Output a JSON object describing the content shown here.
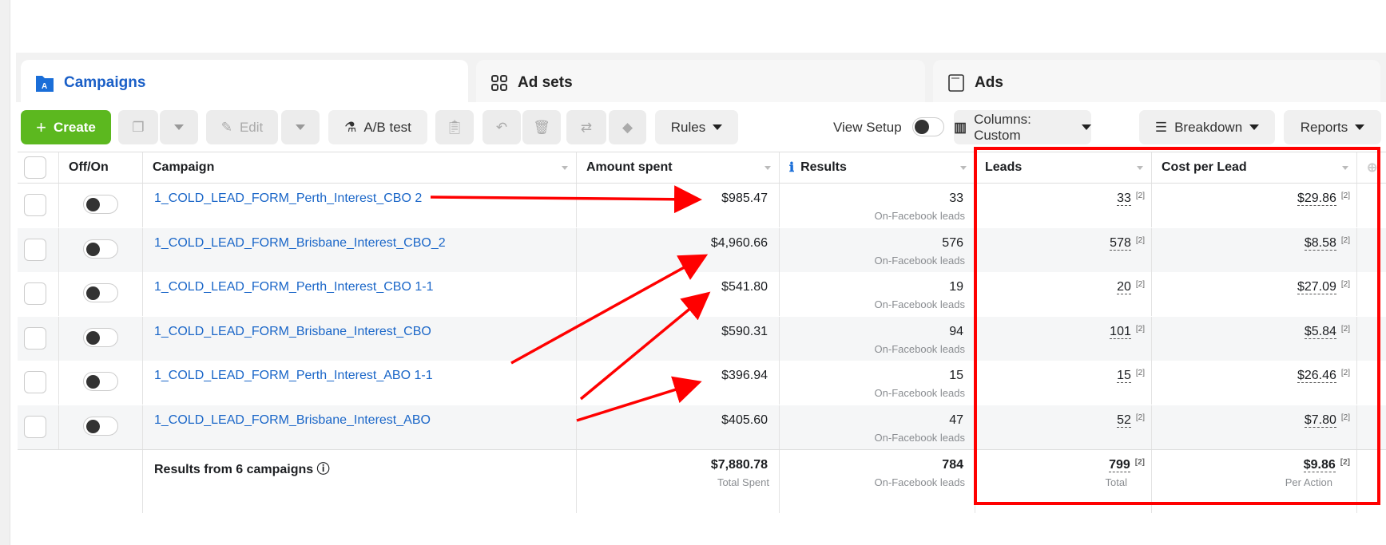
{
  "tabs": [
    {
      "label": "Campaigns",
      "icon": "campaign-folder-icon"
    },
    {
      "label": "Ad sets",
      "icon": "grid-icon"
    },
    {
      "label": "Ads",
      "icon": "ad-window-icon"
    }
  ],
  "toolbar": {
    "create": "Create",
    "edit": "Edit",
    "ab_test": "A/B test",
    "rules": "Rules",
    "view_setup": "View Setup",
    "columns": "Columns: Custom",
    "breakdown": "Breakdown",
    "reports": "Reports"
  },
  "columns": [
    "Off/On",
    "Campaign",
    "Amount spent",
    "Results",
    "Leads",
    "Cost per Lead"
  ],
  "rows": [
    {
      "campaign": "1_COLD_LEAD_FORM_Perth_Interest_CBO 2",
      "amount": "$985.47",
      "results": "33",
      "results_sub": "On-Facebook leads",
      "leads": "33",
      "cpl": "$29.86",
      "fn": "[2]"
    },
    {
      "campaign": "1_COLD_LEAD_FORM_Brisbane_Interest_CBO_2",
      "amount": "$4,960.66",
      "results": "576",
      "results_sub": "On-Facebook leads",
      "leads": "578",
      "cpl": "$8.58",
      "fn": "[2]"
    },
    {
      "campaign": "1_COLD_LEAD_FORM_Perth_Interest_CBO 1-1",
      "amount": "$541.80",
      "results": "19",
      "results_sub": "On-Facebook leads",
      "leads": "20",
      "cpl": "$27.09",
      "fn": "[2]"
    },
    {
      "campaign": "1_COLD_LEAD_FORM_Brisbane_Interest_CBO",
      "amount": "$590.31",
      "results": "94",
      "results_sub": "On-Facebook leads",
      "leads": "101",
      "cpl": "$5.84",
      "fn": "[2]"
    },
    {
      "campaign": "1_COLD_LEAD_FORM_Perth_Interest_ABO 1-1",
      "amount": "$396.94",
      "results": "15",
      "results_sub": "On-Facebook leads",
      "leads": "15",
      "cpl": "$26.46",
      "fn": "[2]"
    },
    {
      "campaign": "1_COLD_LEAD_FORM_Brisbane_Interest_ABO",
      "amount": "$405.60",
      "results": "47",
      "results_sub": "On-Facebook leads",
      "leads": "52",
      "cpl": "$7.80",
      "fn": "[2]"
    }
  ],
  "summary": {
    "label": "Results from 6 campaigns",
    "amount": "$7,880.78",
    "amount_sub": "Total Spent",
    "results": "784",
    "results_sub": "On-Facebook leads",
    "leads": "799",
    "leads_sub": "Total",
    "cpl": "$9.86",
    "cpl_sub": "Per Action",
    "fn": "[2]"
  },
  "annotation_color": "#ff0000"
}
